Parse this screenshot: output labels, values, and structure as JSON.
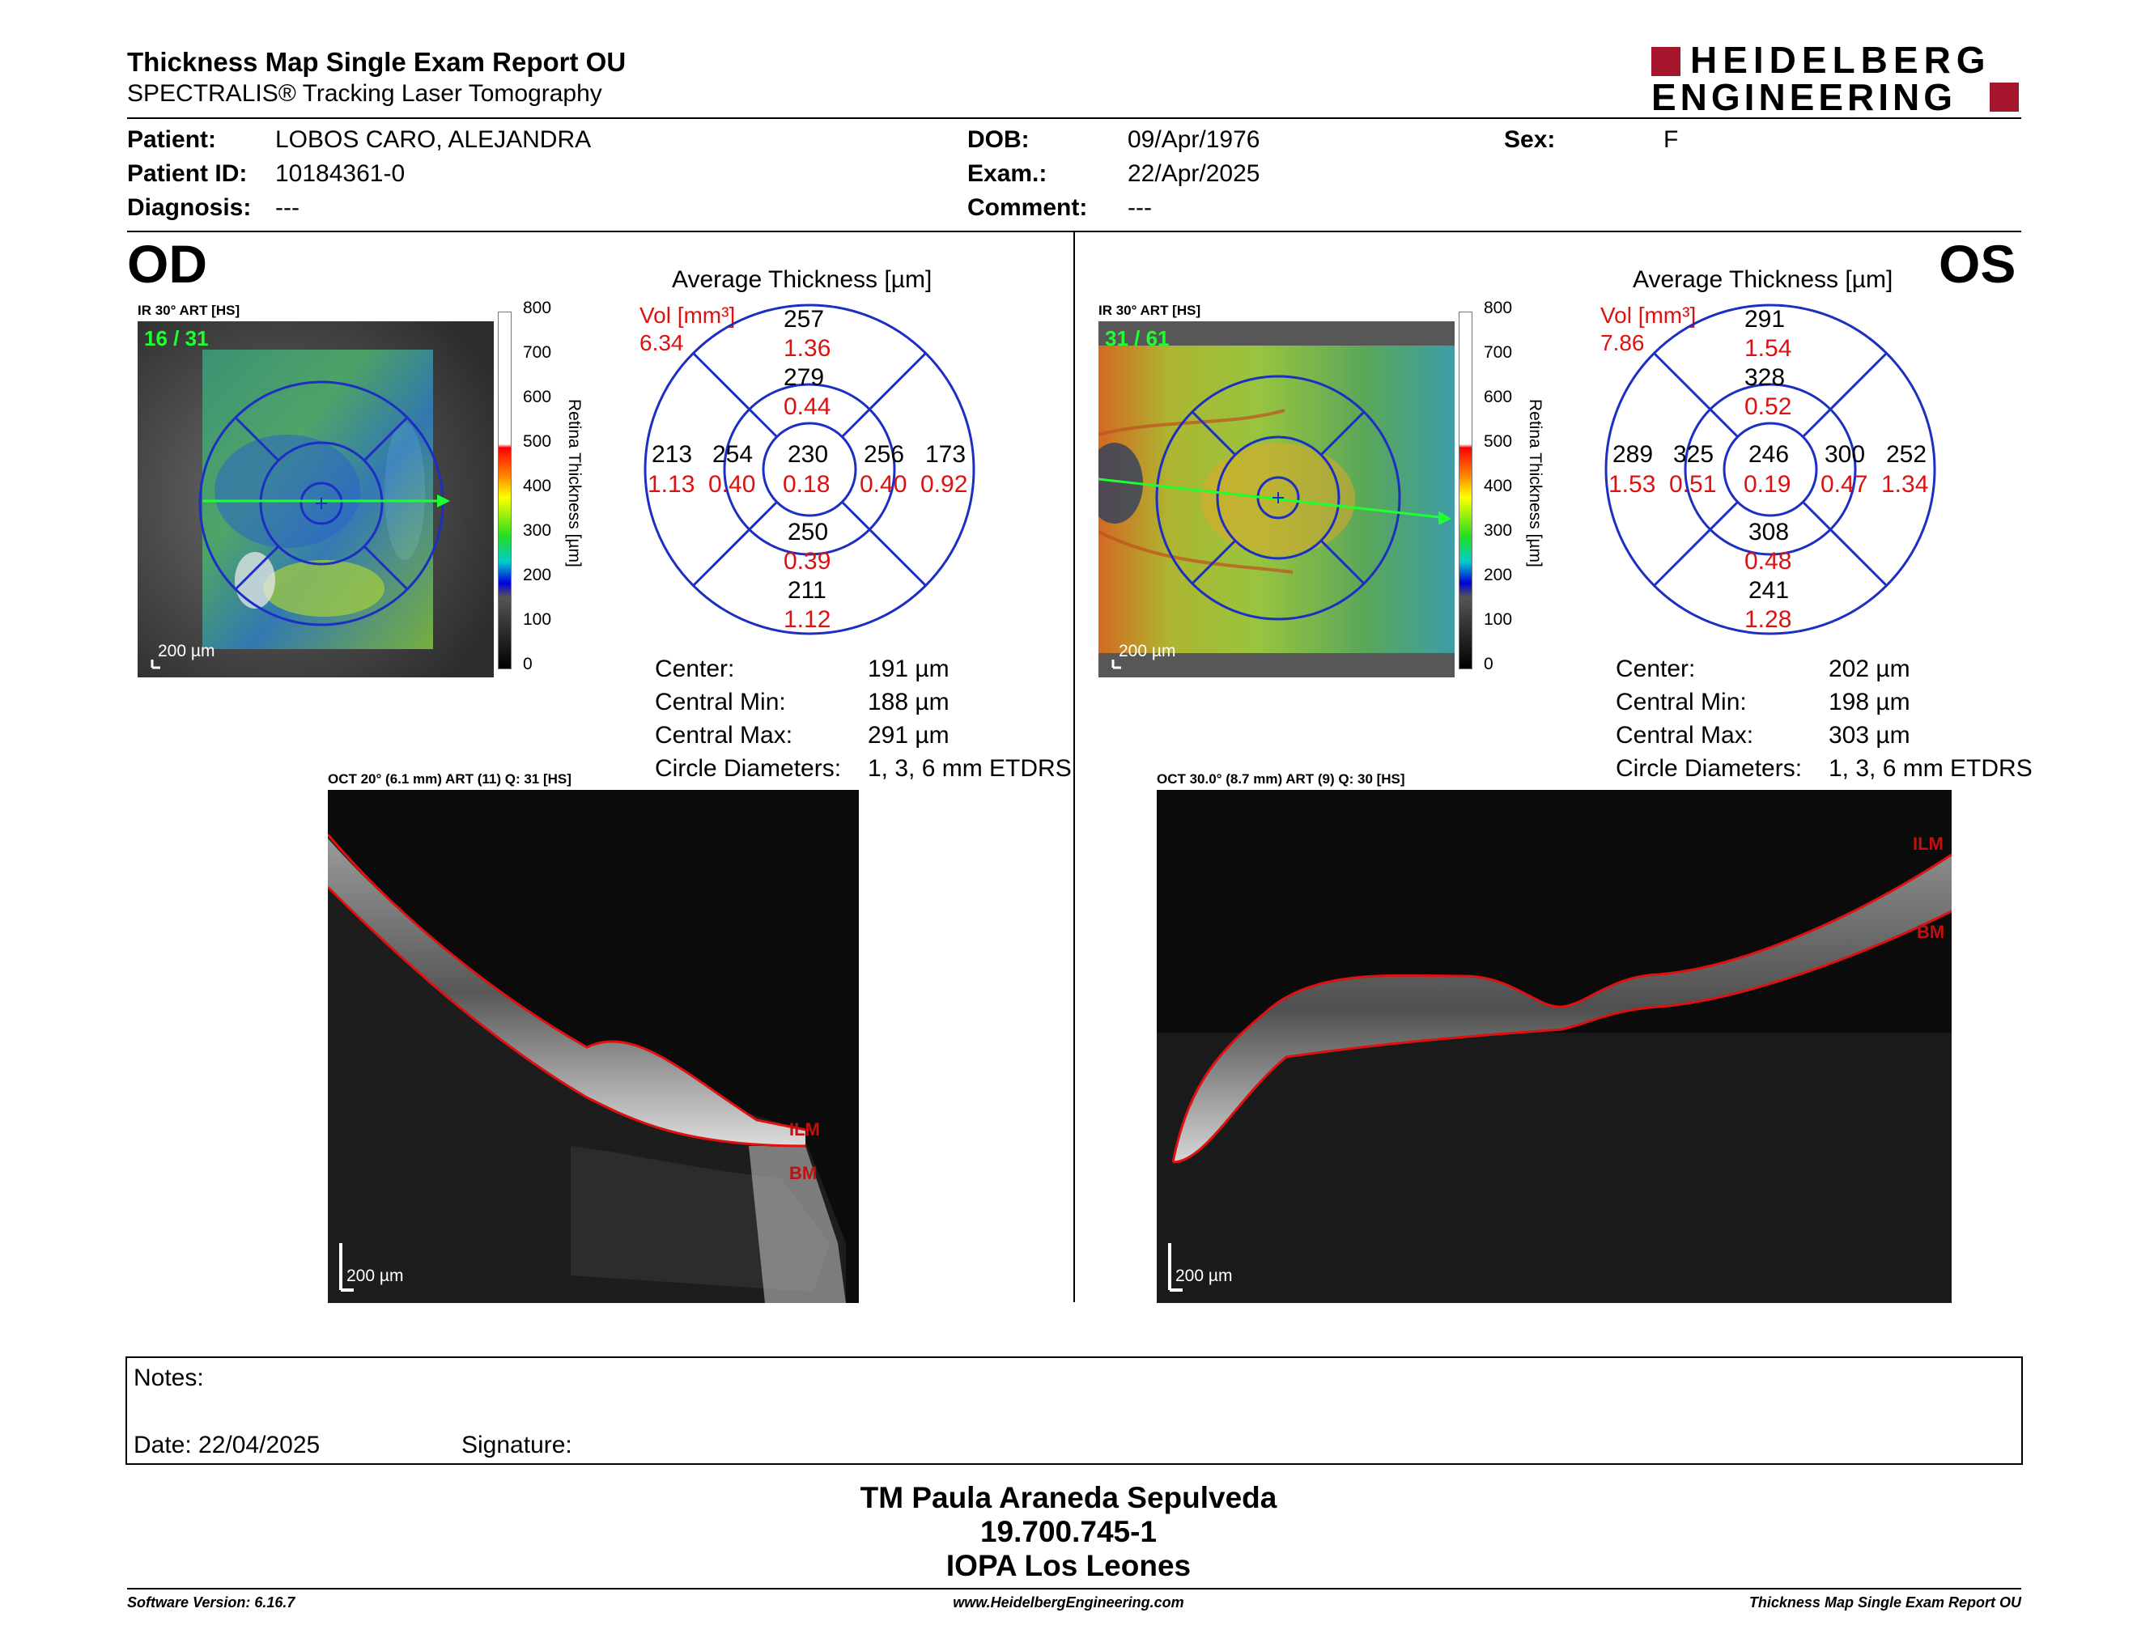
{
  "header": {
    "title": "Thickness Map Single Exam Report OU",
    "subtitle": "SPECTRALIS® Tracking Laser Tomography",
    "logo_line1": "HEIDELBERG",
    "logo_line2": "ENGINEERING"
  },
  "patient": {
    "patient_label": "Patient:",
    "patient_value": "LOBOS CARO,  ALEJANDRA",
    "id_label": "Patient ID:",
    "id_value": "10184361-0",
    "diagnosis_label": "Diagnosis:",
    "diagnosis_value": "---",
    "dob_label": "DOB:",
    "dob_value": "09/Apr/1976",
    "exam_label": "Exam.:",
    "exam_value": "22/Apr/2025",
    "comment_label": "Comment:",
    "comment_value": "---",
    "sex_label": "Sex:",
    "sex_value": "F"
  },
  "colorbar": {
    "ticks": [
      "800",
      "700",
      "600",
      "500",
      "400",
      "300",
      "200",
      "100",
      "0"
    ],
    "label": "Retina  Thickness [µm]"
  },
  "od": {
    "eye": "OD",
    "ir_label": "IR 30° ART [HS]",
    "frame_count": "16 / 31",
    "scale": "200 µm",
    "avg_title": "Average Thickness [µm]",
    "vol_label": "Vol [mm³]",
    "vol_value": "6.34",
    "sectors": {
      "outer_top": "257",
      "outer_top_vol": "1.36",
      "inner_top": "279",
      "inner_top_vol": "0.44",
      "outer_left": "213",
      "outer_left_vol": "1.13",
      "inner_left": "254",
      "inner_left_vol": "0.40",
      "center": "230",
      "center_vol": "0.18",
      "inner_right": "256",
      "inner_right_vol": "0.40",
      "outer_right": "173",
      "outer_right_vol": "0.92",
      "inner_bottom": "250",
      "inner_bottom_vol": "0.39",
      "outer_bottom": "211",
      "outer_bottom_vol": "1.12"
    },
    "stats": {
      "center_label": "Center:",
      "center_value": "191 µm",
      "min_label": "Central Min:",
      "min_value": "188 µm",
      "max_label": "Central Max:",
      "max_value": "291 µm",
      "diam_label": "Circle Diameters:",
      "diam_value": "1, 3, 6 mm ETDRS"
    },
    "oct_label": "OCT 20° (6.1 mm) ART (11) Q: 31 [HS]",
    "ilm": "ILM",
    "bm": "BM",
    "scale_oct": "200 µm"
  },
  "os": {
    "eye": "OS",
    "ir_label": "IR 30° ART [HS]",
    "frame_count": "31 / 61",
    "scale": "200 µm",
    "avg_title": "Average Thickness [µm]",
    "vol_label": "Vol [mm³]",
    "vol_value": "7.86",
    "sectors": {
      "outer_top": "291",
      "outer_top_vol": "1.54",
      "inner_top": "328",
      "inner_top_vol": "0.52",
      "outer_left": "289",
      "outer_left_vol": "1.53",
      "inner_left": "325",
      "inner_left_vol": "0.51",
      "center": "246",
      "center_vol": "0.19",
      "inner_right": "300",
      "inner_right_vol": "0.47",
      "outer_right": "252",
      "outer_right_vol": "1.34",
      "inner_bottom": "308",
      "inner_bottom_vol": "0.48",
      "outer_bottom": "241",
      "outer_bottom_vol": "1.28"
    },
    "stats": {
      "center_label": "Center:",
      "center_value": "202 µm",
      "min_label": "Central Min:",
      "min_value": "198 µm",
      "max_label": "Central Max:",
      "max_value": "303 µm",
      "diam_label": "Circle Diameters:",
      "diam_value": "1, 3, 6 mm ETDRS"
    },
    "oct_label": "OCT 30.0° (8.7 mm) ART (9) Q: 30 [HS]",
    "ilm": "ILM",
    "bm": "BM",
    "scale_oct": "200 µm"
  },
  "notes": {
    "notes_label": "Notes:",
    "date_label": "Date: 22/04/2025",
    "signature_label": "Signature:"
  },
  "signature": {
    "line1": "TM Paula Araneda Sepulveda",
    "line2": "19.700.745-1",
    "line3": "IOPA Los Leones"
  },
  "footer": {
    "software": "Software Version: 6.16.7",
    "website": "www.HeidelbergEngineering.com",
    "report": "Thickness Map Single Exam Report OU"
  },
  "colors": {
    "vol_red": "#dd1111",
    "logo_red": "#a5162c",
    "grid_blue": "#1c2fc2"
  }
}
